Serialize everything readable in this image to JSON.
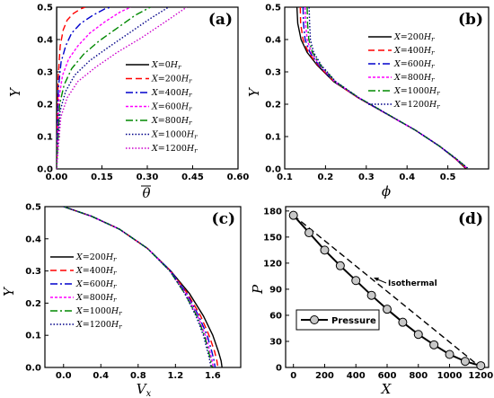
{
  "chart_data": [
    {
      "type": "line",
      "panel": "(a)",
      "xlabel": "θ̄",
      "ylabel": "Y",
      "xlim": [
        0,
        0.6
      ],
      "ylim": [
        0,
        0.5
      ],
      "xticks": [
        "0.00",
        "0.15",
        "0.30",
        "0.45",
        "0.60"
      ],
      "yticks": [
        "0.0",
        "0.1",
        "0.2",
        "0.3",
        "0.4",
        "0.5"
      ],
      "legend_position": "bottom-right",
      "series": [
        {
          "name": "X=0Hr",
          "color": "#000000",
          "dash": "solid",
          "x": [
            0.0,
            0.0
          ],
          "y": [
            0.0,
            0.5
          ]
        },
        {
          "name": "X=200Hr",
          "color": "#ff0000",
          "dash": "long",
          "x": [
            0.0,
            0.005,
            0.012,
            0.022,
            0.035,
            0.055,
            0.08,
            0.095
          ],
          "y": [
            0.0,
            0.28,
            0.38,
            0.43,
            0.46,
            0.48,
            0.495,
            0.5
          ]
        },
        {
          "name": "X=400Hr",
          "color": "#0000cc",
          "dash": "dashdot",
          "x": [
            0.0,
            0.006,
            0.015,
            0.03,
            0.05,
            0.08,
            0.12,
            0.16,
            0.18
          ],
          "y": [
            0.0,
            0.25,
            0.33,
            0.38,
            0.42,
            0.45,
            0.475,
            0.495,
            0.5
          ]
        },
        {
          "name": "X=600Hr",
          "color": "#ff00ff",
          "dash": "short",
          "x": [
            0.0,
            0.008,
            0.02,
            0.04,
            0.07,
            0.11,
            0.16,
            0.21,
            0.245
          ],
          "y": [
            0.0,
            0.22,
            0.29,
            0.34,
            0.38,
            0.42,
            0.455,
            0.485,
            0.5
          ]
        },
        {
          "name": "X=800Hr",
          "color": "#008800",
          "dash": "dashdot",
          "x": [
            0.0,
            0.01,
            0.025,
            0.05,
            0.09,
            0.14,
            0.2,
            0.26,
            0.31
          ],
          "y": [
            0.0,
            0.2,
            0.26,
            0.31,
            0.355,
            0.395,
            0.435,
            0.475,
            0.5
          ]
        },
        {
          "name": "X=1000Hr",
          "color": "#000088",
          "dash": "dot",
          "x": [
            0.0,
            0.012,
            0.03,
            0.06,
            0.11,
            0.17,
            0.24,
            0.31,
            0.37
          ],
          "y": [
            0.0,
            0.18,
            0.24,
            0.29,
            0.335,
            0.375,
            0.42,
            0.465,
            0.5
          ]
        },
        {
          "name": "X=1200Hr",
          "color": "#cc00cc",
          "dash": "dot",
          "x": [
            0.0,
            0.014,
            0.035,
            0.07,
            0.13,
            0.2,
            0.28,
            0.36,
            0.43
          ],
          "y": [
            0.0,
            0.16,
            0.22,
            0.27,
            0.315,
            0.36,
            0.405,
            0.455,
            0.5
          ]
        }
      ]
    },
    {
      "type": "line",
      "panel": "(b)",
      "xlabel": "ϕ",
      "ylabel": "Y",
      "xlim": [
        0.1,
        0.6
      ],
      "ylim": [
        0,
        0.5
      ],
      "xticks": [
        "0.1",
        "0.2",
        "0.3",
        "0.4",
        "0.5"
      ],
      "yticks": [
        "0.0",
        "0.1",
        "0.2",
        "0.3",
        "0.4",
        "0.5"
      ],
      "legend_position": "top-right",
      "series": [
        {
          "name": "X=200Hr",
          "color": "#000000",
          "dash": "solid",
          "x": [
            0.13,
            0.132,
            0.14,
            0.155,
            0.18,
            0.22,
            0.28,
            0.35,
            0.42,
            0.48,
            0.52,
            0.545
          ],
          "y": [
            0.5,
            0.45,
            0.4,
            0.36,
            0.32,
            0.27,
            0.22,
            0.17,
            0.12,
            0.07,
            0.03,
            0.0
          ]
        },
        {
          "name": "X=400Hr",
          "color": "#ff0000",
          "dash": "long",
          "x": [
            0.138,
            0.139,
            0.145,
            0.158,
            0.182,
            0.221,
            0.28,
            0.35,
            0.42,
            0.48,
            0.52,
            0.547
          ],
          "y": [
            0.5,
            0.45,
            0.4,
            0.36,
            0.32,
            0.27,
            0.22,
            0.17,
            0.12,
            0.07,
            0.03,
            0.0
          ]
        },
        {
          "name": "X=600Hr",
          "color": "#0000cc",
          "dash": "dashdot",
          "x": [
            0.145,
            0.146,
            0.15,
            0.162,
            0.184,
            0.222,
            0.281,
            0.35,
            0.42,
            0.48,
            0.521,
            0.548
          ],
          "y": [
            0.5,
            0.45,
            0.4,
            0.36,
            0.32,
            0.27,
            0.22,
            0.17,
            0.12,
            0.07,
            0.03,
            0.0
          ]
        },
        {
          "name": "X=800Hr",
          "color": "#ff00ff",
          "dash": "short",
          "x": [
            0.15,
            0.151,
            0.155,
            0.165,
            0.186,
            0.223,
            0.281,
            0.35,
            0.42,
            0.48,
            0.521,
            0.549
          ],
          "y": [
            0.5,
            0.45,
            0.4,
            0.36,
            0.32,
            0.27,
            0.22,
            0.17,
            0.12,
            0.07,
            0.03,
            0.0
          ]
        },
        {
          "name": "X=1000Hr",
          "color": "#008800",
          "dash": "dashdot",
          "x": [
            0.155,
            0.156,
            0.159,
            0.168,
            0.188,
            0.224,
            0.282,
            0.351,
            0.42,
            0.48,
            0.522,
            0.55
          ],
          "y": [
            0.5,
            0.45,
            0.4,
            0.36,
            0.32,
            0.27,
            0.22,
            0.17,
            0.12,
            0.07,
            0.03,
            0.0
          ]
        },
        {
          "name": "X=1200Hr",
          "color": "#000088",
          "dash": "dot",
          "x": [
            0.16,
            0.161,
            0.163,
            0.171,
            0.19,
            0.225,
            0.282,
            0.351,
            0.42,
            0.48,
            0.522,
            0.551
          ],
          "y": [
            0.5,
            0.45,
            0.4,
            0.36,
            0.32,
            0.27,
            0.22,
            0.17,
            0.12,
            0.07,
            0.03,
            0.0
          ]
        }
      ]
    },
    {
      "type": "line",
      "panel": "(c)",
      "xlabel": "Vx",
      "ylabel": "Y",
      "xlim": [
        -0.2,
        1.9
      ],
      "ylim": [
        0,
        0.5
      ],
      "xticks": [
        "0.0",
        "0.4",
        "0.8",
        "1.2",
        "1.6"
      ],
      "yticks": [
        "0.0",
        "0.1",
        "0.2",
        "0.3",
        "0.4",
        "0.5"
      ],
      "legend_position": "bottom-left",
      "series": [
        {
          "name": "X=200Hr",
          "color": "#000000",
          "dash": "solid",
          "x": [
            0.0,
            0.3,
            0.6,
            0.9,
            1.15,
            1.35,
            1.5,
            1.6,
            1.66,
            1.69,
            1.7
          ],
          "y": [
            0.5,
            0.47,
            0.43,
            0.37,
            0.3,
            0.23,
            0.16,
            0.1,
            0.05,
            0.02,
            0.0
          ]
        },
        {
          "name": "X=400Hr",
          "color": "#ff0000",
          "dash": "long",
          "x": [
            0.0,
            0.3,
            0.6,
            0.9,
            1.15,
            1.33,
            1.47,
            1.56,
            1.62,
            1.645,
            1.655
          ],
          "y": [
            0.5,
            0.47,
            0.43,
            0.37,
            0.3,
            0.23,
            0.16,
            0.1,
            0.05,
            0.02,
            0.0
          ]
        },
        {
          "name": "X=600Hr",
          "color": "#0000cc",
          "dash": "dashdot",
          "x": [
            0.0,
            0.3,
            0.6,
            0.9,
            1.15,
            1.32,
            1.45,
            1.54,
            1.59,
            1.615,
            1.625
          ],
          "y": [
            0.5,
            0.47,
            0.43,
            0.37,
            0.3,
            0.23,
            0.16,
            0.1,
            0.05,
            0.02,
            0.0
          ]
        },
        {
          "name": "X=800Hr",
          "color": "#ff00ff",
          "dash": "short",
          "x": [
            0.0,
            0.3,
            0.6,
            0.9,
            1.14,
            1.31,
            1.44,
            1.52,
            1.57,
            1.595,
            1.605
          ],
          "y": [
            0.5,
            0.47,
            0.43,
            0.37,
            0.3,
            0.23,
            0.16,
            0.1,
            0.05,
            0.02,
            0.0
          ]
        },
        {
          "name": "X=1000Hr",
          "color": "#008800",
          "dash": "dashdot",
          "x": [
            0.0,
            0.3,
            0.6,
            0.9,
            1.14,
            1.3,
            1.43,
            1.51,
            1.555,
            1.58,
            1.59
          ],
          "y": [
            0.5,
            0.47,
            0.43,
            0.37,
            0.3,
            0.23,
            0.16,
            0.1,
            0.05,
            0.02,
            0.0
          ]
        },
        {
          "name": "X=1200Hr",
          "color": "#000088",
          "dash": "dot",
          "x": [
            0.0,
            0.3,
            0.6,
            0.9,
            1.14,
            1.3,
            1.42,
            1.5,
            1.545,
            1.57,
            1.58
          ],
          "y": [
            0.5,
            0.47,
            0.43,
            0.37,
            0.3,
            0.23,
            0.16,
            0.1,
            0.05,
            0.02,
            0.0
          ]
        }
      ]
    },
    {
      "type": "line",
      "panel": "(d)",
      "xlabel": "X",
      "ylabel": "P",
      "xlim": [
        -50,
        1250
      ],
      "ylim": [
        0,
        185
      ],
      "xticks": [
        "0",
        "200",
        "400",
        "600",
        "800",
        "1000",
        "1200"
      ],
      "yticks": [
        "0",
        "30",
        "60",
        "90",
        "120",
        "150",
        "180"
      ],
      "legend_position": "bottom-left",
      "annotation": "Isothermal",
      "series": [
        {
          "name": "Pressure",
          "color": "#000000",
          "dash": "solid",
          "marker": "circle",
          "x": [
            0,
            100,
            200,
            300,
            400,
            500,
            600,
            700,
            800,
            900,
            1000,
            1100,
            1200
          ],
          "y": [
            175,
            155,
            135,
            117,
            100,
            83,
            67,
            52,
            38,
            26,
            15,
            7,
            2
          ]
        },
        {
          "name": "Isothermal",
          "color": "#000000",
          "dash": "long",
          "x": [
            0,
            1200
          ],
          "y": [
            175,
            0
          ]
        }
      ]
    }
  ],
  "legend_a": [
    "X=0",
    "X=200",
    "X=400",
    "X=600",
    "X=800",
    "X=1000",
    "X=1200"
  ],
  "legend_bc": [
    "X=200",
    "X=400",
    "X=600",
    "X=800",
    "X=1000",
    "X=1200"
  ],
  "legend_unit": "H",
  "legend_unit_sub": "r",
  "legend_d": "Pressure",
  "isothermal_label": "Isothermal",
  "xlabel_a_theta": "θ",
  "xlabel_b": "ϕ",
  "xlabel_c_main": "V",
  "xlabel_c_sub": "x",
  "xlabel_d": "X",
  "ylabel_abc": "Y",
  "ylabel_d": "P",
  "panel_labels": [
    "(a)",
    "(b)",
    "(c)",
    "(d)"
  ]
}
